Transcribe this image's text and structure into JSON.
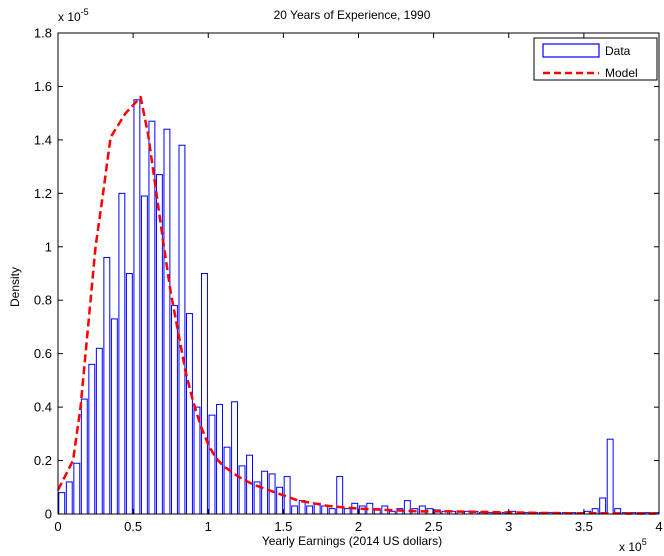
{
  "chart_data": {
    "type": "bar",
    "title": "20 Years of Experience, 1990",
    "xlabel": "Yearly Earnings (2014 US dollars)",
    "ylabel": "Density",
    "x_exponent_prefix": "x 10",
    "x_exponent_power": "5",
    "y_exponent_prefix": "x 10",
    "y_exponent_power": "-5",
    "xlim": [
      0,
      4
    ],
    "ylim": [
      0,
      1.8
    ],
    "x_ticks": [
      "0",
      "0.5",
      "1",
      "1.5",
      "2",
      "2.5",
      "3",
      "3.5",
      "4"
    ],
    "y_ticks": [
      "0",
      "0.2",
      "0.4",
      "0.6",
      "0.8",
      "1",
      "1.2",
      "1.4",
      "1.6",
      "1.8"
    ],
    "bin_width": 0.05,
    "legend_position": "top-right",
    "grid": false,
    "series": [
      {
        "name": "Data",
        "style": "bar-outline",
        "color": "#0000FF",
        "x": [
          0.0,
          0.05,
          0.1,
          0.15,
          0.2,
          0.25,
          0.3,
          0.35,
          0.4,
          0.45,
          0.5,
          0.55,
          0.6,
          0.65,
          0.7,
          0.75,
          0.8,
          0.85,
          0.9,
          0.95,
          1.0,
          1.05,
          1.1,
          1.15,
          1.2,
          1.25,
          1.3,
          1.35,
          1.4,
          1.45,
          1.5,
          1.55,
          1.6,
          1.65,
          1.7,
          1.75,
          1.8,
          1.85,
          1.9,
          1.95,
          2.0,
          2.05,
          2.1,
          2.15,
          2.2,
          2.25,
          2.3,
          2.35,
          2.4,
          2.45,
          2.5,
          2.55,
          2.6,
          2.65,
          2.7,
          2.75,
          2.8,
          2.85,
          2.9,
          2.95,
          3.0,
          3.05,
          3.1,
          3.15,
          3.2,
          3.25,
          3.3,
          3.35,
          3.4,
          3.45,
          3.5,
          3.55,
          3.6,
          3.65,
          3.7,
          3.75,
          3.8,
          3.85,
          3.9,
          3.95
        ],
        "values": [
          0.08,
          0.12,
          0.19,
          0.43,
          0.56,
          0.62,
          0.96,
          0.73,
          1.2,
          0.9,
          1.55,
          1.19,
          1.47,
          1.27,
          1.44,
          0.78,
          1.38,
          0.75,
          0.4,
          0.9,
          0.37,
          0.41,
          0.25,
          0.42,
          0.18,
          0.22,
          0.12,
          0.16,
          0.15,
          0.1,
          0.14,
          0.03,
          0.05,
          0.03,
          0.04,
          0.03,
          0.02,
          0.14,
          0.02,
          0.04,
          0.03,
          0.04,
          0.02,
          0.03,
          0.01,
          0.02,
          0.05,
          0.02,
          0.03,
          0.02,
          0.015,
          0.01,
          0.01,
          0.01,
          0.01,
          0.01,
          0.005,
          0.005,
          0.005,
          0.005,
          0.01,
          0.005,
          0.005,
          0.005,
          0.005,
          0.005,
          0.005,
          0.005,
          0.005,
          0.005,
          0.01,
          0.02,
          0.06,
          0.28,
          0.02,
          0.005,
          0.005,
          0.005,
          0.005,
          0.005
        ]
      },
      {
        "name": "Model",
        "style": "dashed-line",
        "color": "#FF0000",
        "x": [
          0.0,
          0.1,
          0.15,
          0.2,
          0.25,
          0.3,
          0.35,
          0.45,
          0.5,
          0.55,
          0.6,
          0.65,
          0.7,
          0.75,
          0.8,
          0.85,
          0.9,
          0.95,
          1.0,
          1.05,
          1.1,
          1.2,
          1.3,
          1.4,
          1.5,
          1.6,
          1.7,
          1.8,
          1.9,
          2.0,
          2.2,
          2.4,
          2.6,
          2.8,
          3.0,
          3.2,
          3.4,
          3.6,
          3.8,
          4.0
        ],
        "values": [
          0.09,
          0.2,
          0.4,
          0.7,
          1.0,
          1.2,
          1.41,
          1.5,
          1.53,
          1.56,
          1.42,
          1.22,
          1.02,
          0.83,
          0.68,
          0.53,
          0.42,
          0.33,
          0.26,
          0.21,
          0.18,
          0.14,
          0.11,
          0.09,
          0.07,
          0.05,
          0.04,
          0.03,
          0.025,
          0.02,
          0.015,
          0.01,
          0.01,
          0.008,
          0.006,
          0.004,
          0.003,
          0.003,
          0.002,
          0.002
        ]
      }
    ]
  }
}
